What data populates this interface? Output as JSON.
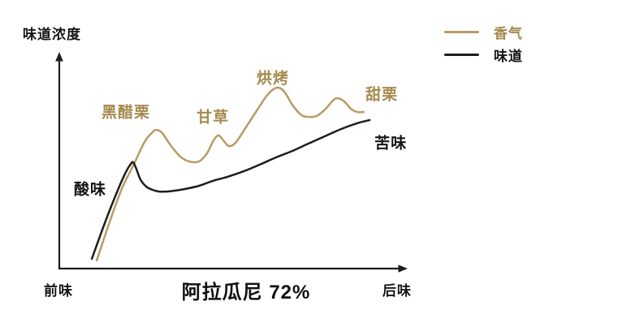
{
  "colors": {
    "aroma_line": "#b89b66",
    "aroma_text": "#a5894e",
    "taste_line": "#1d1d1d",
    "taste_text": "#151515",
    "axis": "#1d1d1d",
    "background": "#ffffff"
  },
  "chart_data": {
    "type": "line",
    "title": "阿拉瓜尼 72%",
    "y_axis": {
      "label": "味道浓度",
      "range": [
        0,
        100
      ],
      "ticks": "none"
    },
    "x_axis": {
      "label_left": "前味",
      "label_right": "后味",
      "range": [
        0,
        100
      ],
      "ticks": "none"
    },
    "grid": false,
    "legend_position": "top-right",
    "series": [
      {
        "id": "aroma",
        "name": "香气",
        "color": "#b89b66",
        "label_color": "#a5894e",
        "points": [
          [
            10.8,
            3.8
          ],
          [
            14.5,
            21.7
          ],
          [
            18.0,
            37.3
          ],
          [
            21.1,
            47.5
          ],
          [
            24.6,
            59.3
          ],
          [
            26.9,
            63.9
          ],
          [
            28.1,
            65.0
          ],
          [
            29.7,
            63.5
          ],
          [
            32.1,
            57.8
          ],
          [
            34.9,
            52.5
          ],
          [
            37.5,
            50.2
          ],
          [
            40.3,
            50.2
          ],
          [
            42.6,
            54.0
          ],
          [
            44.5,
            60.1
          ],
          [
            45.9,
            62.4
          ],
          [
            47.3,
            60.1
          ],
          [
            48.9,
            57.4
          ],
          [
            50.8,
            58.9
          ],
          [
            53.2,
            64.6
          ],
          [
            56.7,
            73.4
          ],
          [
            60.2,
            81.7
          ],
          [
            62.8,
            84.8
          ],
          [
            64.9,
            82.9
          ],
          [
            67.2,
            76.8
          ],
          [
            69.6,
            72.2
          ],
          [
            71.4,
            71.1
          ],
          [
            74.2,
            71.5
          ],
          [
            76.6,
            74.5
          ],
          [
            78.9,
            78.7
          ],
          [
            80.3,
            79.8
          ],
          [
            82.2,
            78.3
          ],
          [
            84.1,
            74.9
          ],
          [
            85.9,
            73.4
          ],
          [
            87.8,
            73.4
          ]
        ]
      },
      {
        "id": "taste",
        "name": "味道",
        "color": "#1d1d1d",
        "label_color": "#151515",
        "points": [
          [
            9.4,
            4.6
          ],
          [
            13.3,
            22.1
          ],
          [
            16.9,
            36.9
          ],
          [
            19.2,
            45.2
          ],
          [
            20.6,
            49.0
          ],
          [
            21.3,
            49.8
          ],
          [
            22.2,
            46.8
          ],
          [
            23.4,
            41.8
          ],
          [
            25.1,
            38.4
          ],
          [
            26.9,
            36.9
          ],
          [
            28.8,
            36.1
          ],
          [
            30.9,
            36.1
          ],
          [
            33.3,
            36.5
          ],
          [
            36.3,
            37.3
          ],
          [
            40.3,
            38.8
          ],
          [
            44.3,
            41.1
          ],
          [
            48.5,
            43.0
          ],
          [
            53.2,
            45.6
          ],
          [
            57.8,
            48.7
          ],
          [
            62.5,
            52.1
          ],
          [
            67.2,
            55.1
          ],
          [
            71.9,
            58.6
          ],
          [
            76.6,
            62.0
          ],
          [
            81.3,
            65.4
          ],
          [
            85.9,
            68.1
          ],
          [
            89.5,
            69.6
          ]
        ]
      }
    ],
    "annotations": [
      {
        "label": "酸味",
        "series": "taste",
        "x": 8.9,
        "y": 37.6,
        "color": "#151515"
      },
      {
        "label": "黑醋栗",
        "series": "aroma",
        "x": 19.2,
        "y": 73.8,
        "color": "#a5894e"
      },
      {
        "label": "甘草",
        "series": "aroma",
        "x": 44.3,
        "y": 71.5,
        "color": "#a5894e"
      },
      {
        "label": "烘烤",
        "series": "aroma",
        "x": 61.6,
        "y": 89.7,
        "color": "#a5894e"
      },
      {
        "label": "甜栗",
        "series": "aroma",
        "x": 93.0,
        "y": 82.1,
        "color": "#a5894e"
      },
      {
        "label": "苦味",
        "series": "taste",
        "x": 95.6,
        "y": 59.3,
        "color": "#151515"
      }
    ]
  }
}
